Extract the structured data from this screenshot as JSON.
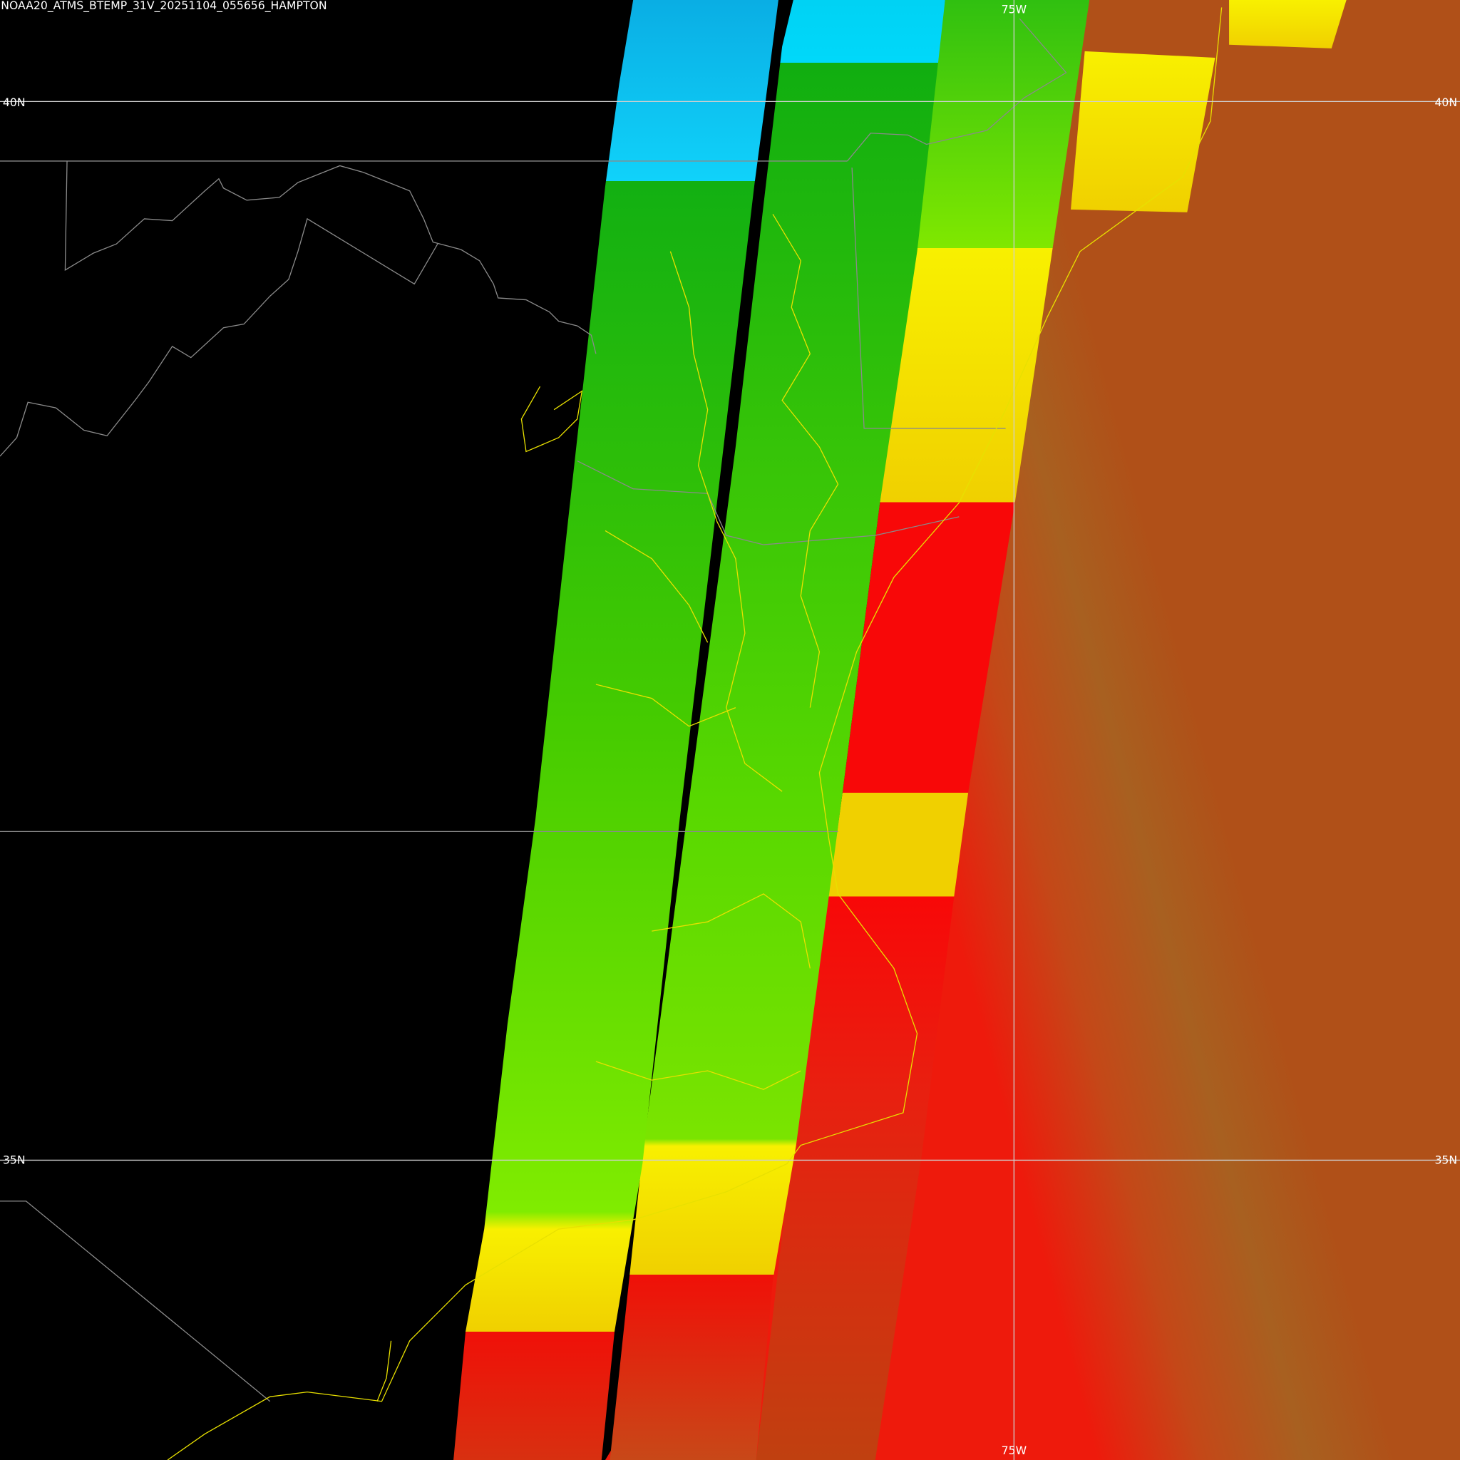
{
  "header": {
    "title": "NOAA20_ATMS_BTEMP_31V_20251104_055656_HAMPTON"
  },
  "graticule": {
    "latitude_labels": [
      "40N",
      "35N"
    ],
    "longitude_labels": [
      "75W"
    ]
  }
}
